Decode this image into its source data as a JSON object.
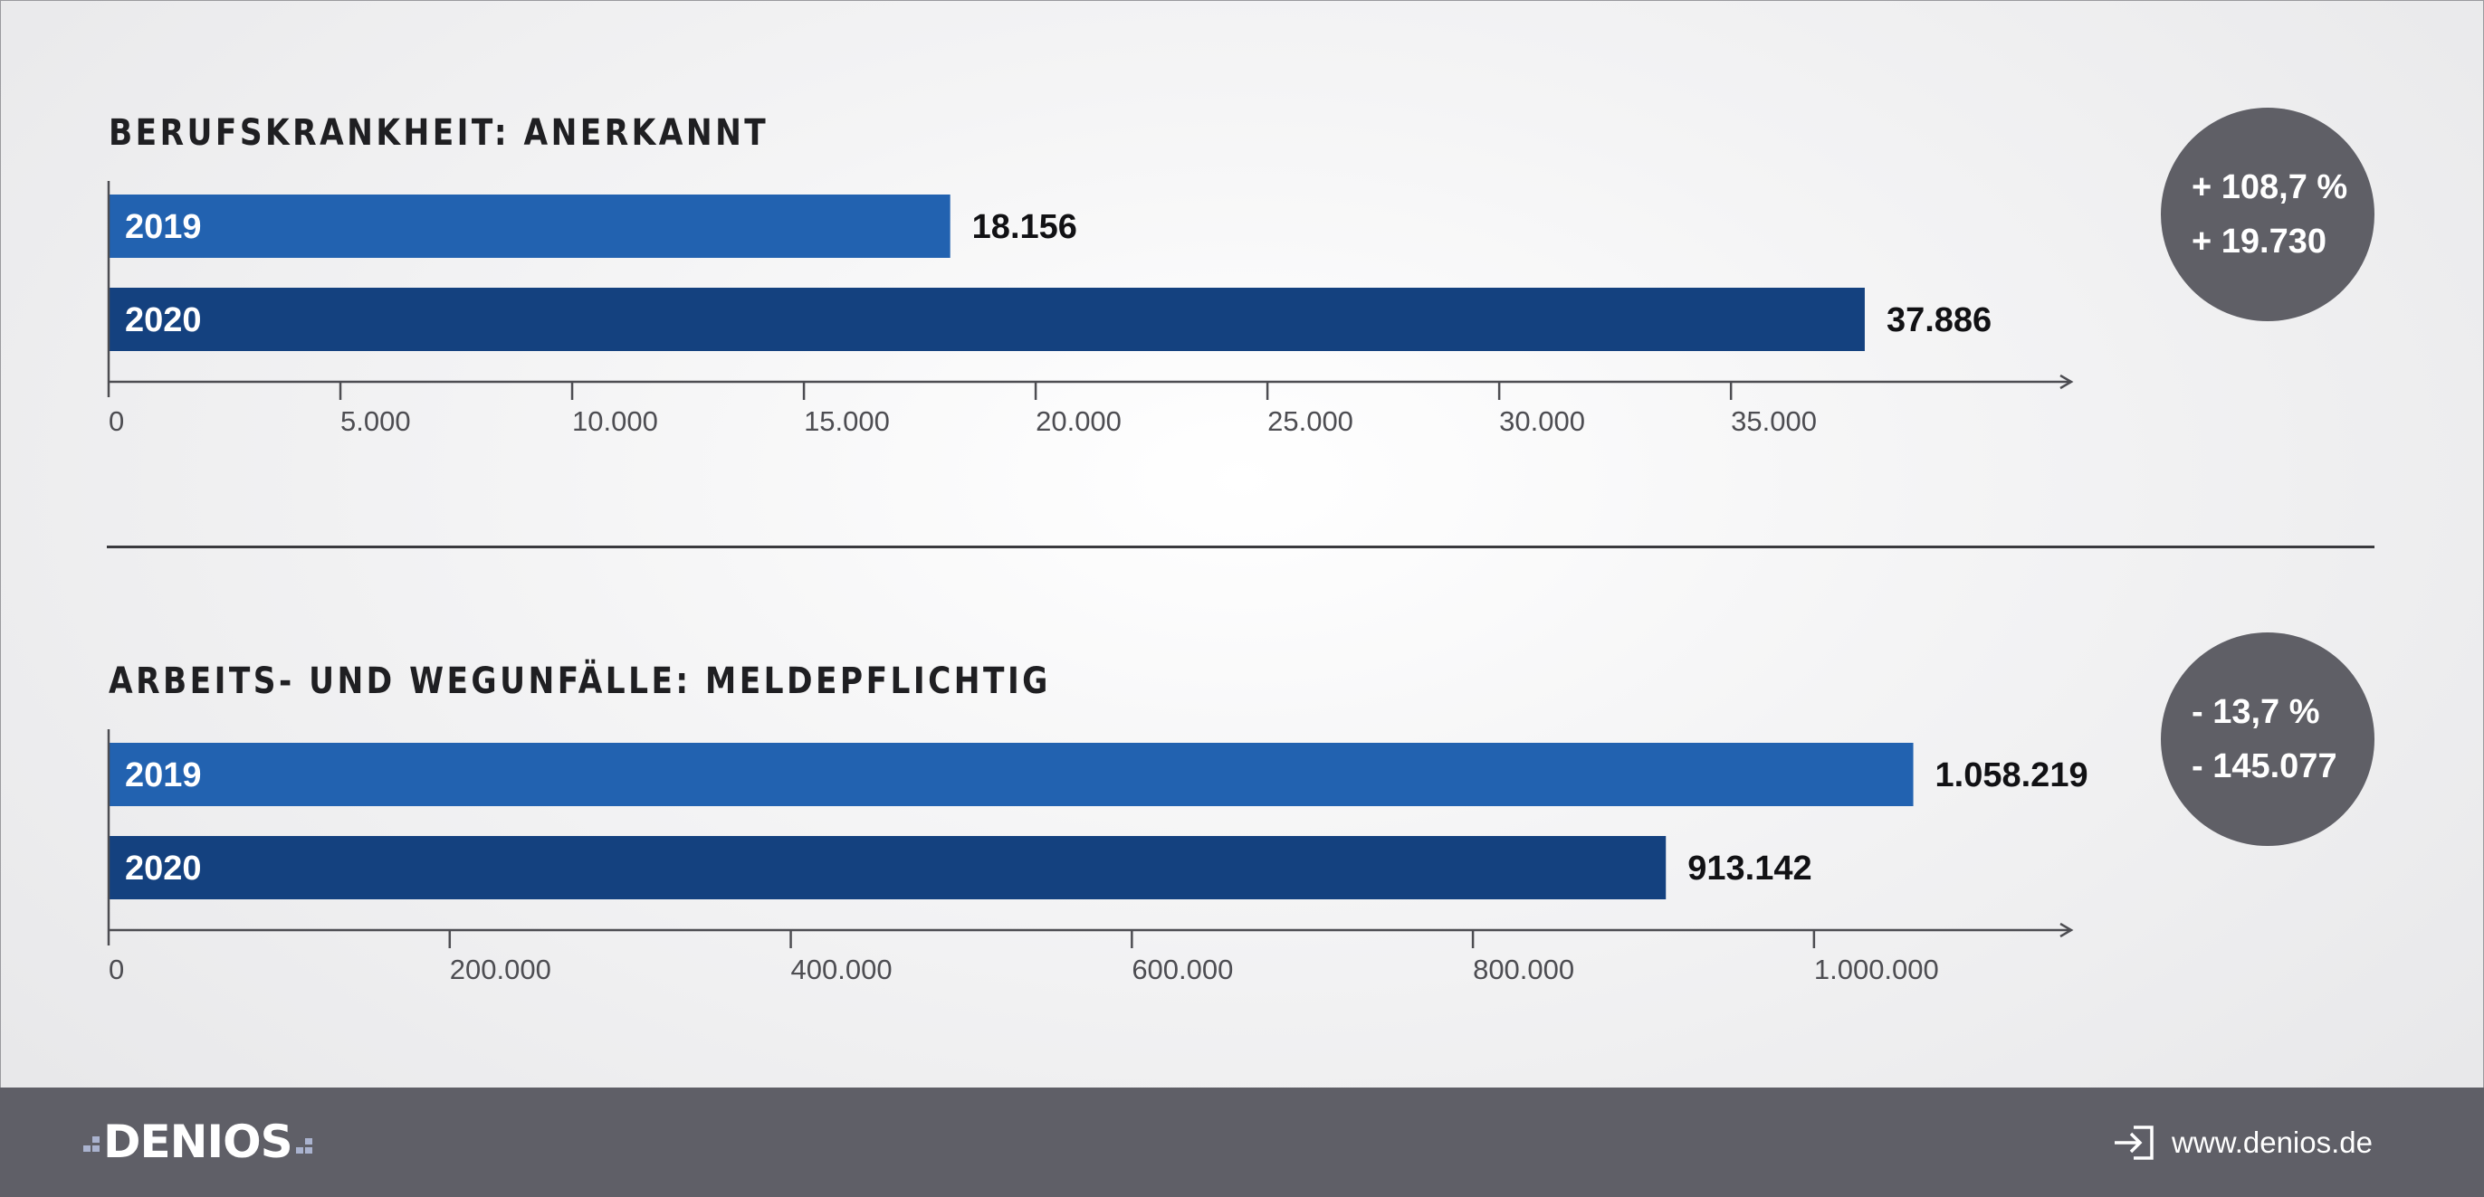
{
  "chart_data": [
    {
      "type": "bar",
      "orientation": "horizontal",
      "title": "BERUFSKRANKHEIT: ANERKANNT",
      "categories": [
        "2019",
        "2020"
      ],
      "values": [
        18156,
        37886
      ],
      "value_labels": [
        "18.156",
        "37.886"
      ],
      "colors": [
        "#2262b0",
        "#14417f"
      ],
      "xlim": [
        0,
        41500
      ],
      "ticks": [
        0,
        5000,
        10000,
        15000,
        20000,
        25000,
        30000,
        35000
      ],
      "tick_labels": [
        "0",
        "5.000",
        "10.000",
        "15.000",
        "20.000",
        "25.000",
        "30.000",
        "35.000"
      ],
      "grid": false,
      "change": {
        "percent": "+ 108,7 %",
        "absolute": "+ 19.730"
      }
    },
    {
      "type": "bar",
      "orientation": "horizontal",
      "title": "ARBEITS- UND WEGUNFÄLLE: MELDEPFLICHTIG",
      "categories": [
        "2019",
        "2020"
      ],
      "values": [
        1058219,
        913142
      ],
      "value_labels": [
        "1.058.219",
        "913.142"
      ],
      "colors": [
        "#2262b0",
        "#14417f"
      ],
      "xlim": [
        0,
        1128000
      ],
      "ticks": [
        0,
        200000,
        400000,
        600000,
        800000,
        1000000
      ],
      "tick_labels": [
        "0",
        "200.000",
        "400.000",
        "600.000",
        "800.000",
        "1.000.000"
      ],
      "grid": false,
      "change": {
        "percent": "- 13,7 %",
        "absolute": "- 145.077"
      }
    }
  ],
  "footer": {
    "logo_text": "DENIOS",
    "url": "www.denios.de",
    "url_icon": "sign-in-icon",
    "background": "#5f5f67"
  },
  "badge_color": "#5f5f66",
  "axis_color": "#4d4d52"
}
